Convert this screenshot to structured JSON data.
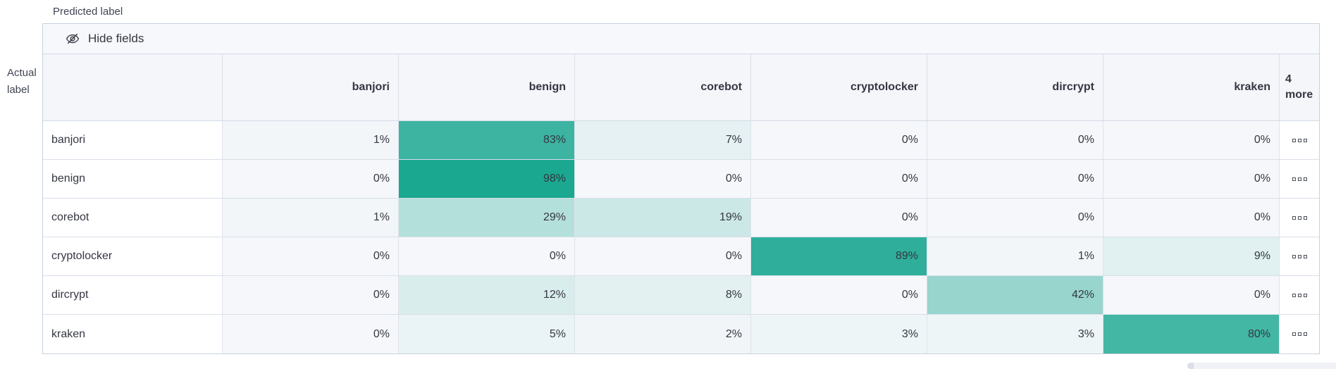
{
  "captions": {
    "predicted": "Predicted label",
    "actual_line1": "Actual",
    "actual_line2": "label"
  },
  "toolbar": {
    "hide_fields_label": "Hide fields",
    "icon": "eye-closed-icon"
  },
  "chart_data": {
    "type": "heatmap",
    "title": "Confusion matrix (normalized %), actual vs predicted label",
    "columns": [
      "banjori",
      "benign",
      "corebot",
      "cryptolocker",
      "dircrypt",
      "kraken"
    ],
    "more_column": {
      "count": "4",
      "word": "more"
    },
    "rows": [
      {
        "label": "banjori",
        "values": [
          1,
          83,
          7,
          0,
          0,
          0
        ]
      },
      {
        "label": "benign",
        "values": [
          0,
          98,
          0,
          0,
          0,
          0
        ]
      },
      {
        "label": "corebot",
        "values": [
          1,
          29,
          19,
          0,
          0,
          0
        ]
      },
      {
        "label": "cryptolocker",
        "values": [
          0,
          0,
          0,
          89,
          1,
          9
        ]
      },
      {
        "label": "dircrypt",
        "values": [
          0,
          12,
          8,
          0,
          42,
          0
        ]
      },
      {
        "label": "kraken",
        "values": [
          0,
          5,
          2,
          3,
          3,
          80
        ]
      }
    ],
    "value_suffix": "%",
    "heat_scale": {
      "min_color": "#F5F7FA",
      "max_color": "#16A68F"
    },
    "text_color": "#343741",
    "legend_position": "none",
    "grid": true
  },
  "row_actions_icon": "boxes-horizontal-icon",
  "scrollbar": {
    "orientation": "horizontal"
  }
}
